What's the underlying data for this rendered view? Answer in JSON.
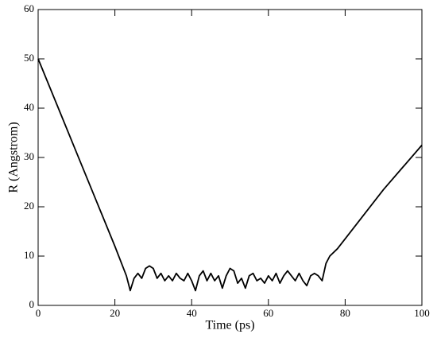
{
  "chart_data": {
    "type": "line",
    "xlabel": "Time (ps)",
    "ylabel": "R (Angstrom)",
    "x": [
      0,
      5,
      10,
      15,
      20,
      22,
      23,
      24,
      25,
      26,
      27,
      28,
      29,
      30,
      31,
      32,
      33,
      34,
      35,
      36,
      37,
      38,
      39,
      40,
      41,
      42,
      43,
      44,
      45,
      46,
      47,
      48,
      49,
      50,
      51,
      52,
      53,
      54,
      55,
      56,
      57,
      58,
      59,
      60,
      61,
      62,
      63,
      64,
      65,
      66,
      67,
      68,
      69,
      70,
      71,
      72,
      73,
      74,
      75,
      76,
      78,
      80,
      85,
      90,
      95,
      100
    ],
    "values": [
      50,
      40.5,
      31,
      21.5,
      12,
      8,
      6,
      3,
      5.5,
      6.5,
      5.5,
      7.5,
      8,
      7.5,
      5.5,
      6.5,
      5,
      6,
      5,
      6.5,
      5.5,
      5,
      6.5,
      5,
      3,
      6,
      7,
      5,
      6.5,
      5,
      6,
      3.5,
      6,
      7.5,
      7,
      4.5,
      5.5,
      3.5,
      6,
      6.5,
      5,
      5.5,
      4.5,
      6,
      5,
      6.5,
      4.5,
      6,
      7,
      6,
      5,
      6.5,
      5,
      4,
      6,
      6.5,
      6,
      5,
      8.5,
      10,
      11.5,
      13.5,
      18.5,
      23.5,
      28,
      32.5
    ],
    "color": "#000000",
    "xlim": [
      0,
      100
    ],
    "xticks": [
      0,
      20,
      40,
      60,
      80,
      100
    ],
    "ylim": [
      0,
      60
    ],
    "yticks": [
      0,
      10,
      20,
      30,
      40,
      50,
      60
    ],
    "grid": false
  }
}
